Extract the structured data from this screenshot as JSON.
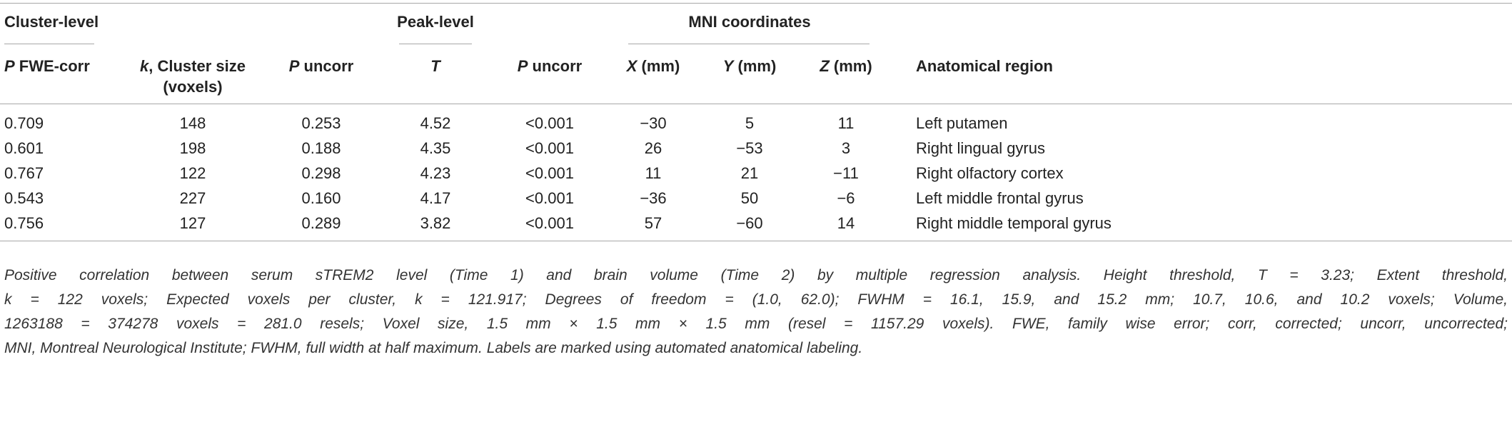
{
  "groups": {
    "cluster": "Cluster-level",
    "peak": "Peak-level",
    "mni": "MNI coordinates"
  },
  "headers": {
    "p_fwe": {
      "italic": "P",
      "rest": " FWE-corr"
    },
    "k": {
      "italic": "k",
      "line1": ", Cluster size",
      "line2": "(voxels)"
    },
    "p_uncorr_cluster": {
      "italic": "P",
      "rest": " uncorr"
    },
    "t": {
      "italic": "T"
    },
    "p_uncorr_peak": {
      "italic": "P",
      "rest": " uncorr"
    },
    "x": {
      "italic": "X",
      "rest": " (mm)"
    },
    "y": {
      "italic": "Y",
      "rest": " (mm)"
    },
    "z": {
      "italic": "Z",
      "rest": " (mm)"
    },
    "region": "Anatomical region"
  },
  "rows": [
    {
      "p_fwe": "0.709",
      "k": "148",
      "p_uncorr_c": "0.253",
      "t": "4.52",
      "p_uncorr_p": "<0.001",
      "x": "−30",
      "y": "5",
      "z": "11",
      "region": "Left putamen"
    },
    {
      "p_fwe": "0.601",
      "k": "198",
      "p_uncorr_c": "0.188",
      "t": "4.35",
      "p_uncorr_p": "<0.001",
      "x": "26",
      "y": "−53",
      "z": "3",
      "region": "Right lingual gyrus"
    },
    {
      "p_fwe": "0.767",
      "k": "122",
      "p_uncorr_c": "0.298",
      "t": "4.23",
      "p_uncorr_p": "<0.001",
      "x": "11",
      "y": "21",
      "z": "−11",
      "region": "Right olfactory cortex"
    },
    {
      "p_fwe": "0.543",
      "k": "227",
      "p_uncorr_c": "0.160",
      "t": "4.17",
      "p_uncorr_p": "<0.001",
      "x": "−36",
      "y": "50",
      "z": "−6",
      "region": "Left middle frontal gyrus"
    },
    {
      "p_fwe": "0.756",
      "k": "127",
      "p_uncorr_c": "0.289",
      "t": "3.82",
      "p_uncorr_p": "<0.001",
      "x": "57",
      "y": "−60",
      "z": "14",
      "region": "Right middle temporal gyrus"
    }
  ],
  "caption": [
    "Positive correlation between serum sTREM2 level (Time 1) and brain volume (Time 2) by multiple regression analysis. Height threshold, T = 3.23; Extent threshold,",
    "k = 122 voxels; Expected voxels per cluster, k = 121.917; Degrees of freedom = (1.0, 62.0); FWHM = 16.1, 15.9, and 15.2 mm; 10.7, 10.6, and 10.2 voxels; Volume,",
    "1263188 = 374278 voxels = 281.0 resels; Voxel size, 1.5 mm × 1.5 mm × 1.5 mm (resel = 1157.29 voxels). FWE, family wise error; corr, corrected; uncorr, uncorrected;",
    "MNI, Montreal Neurological Institute; FWHM, full width at half maximum. Labels are marked using automated anatomical labeling."
  ]
}
